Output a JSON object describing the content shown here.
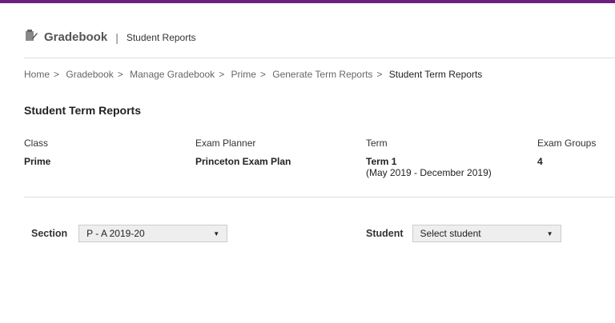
{
  "colors": {
    "topbar": "#6d1f7e"
  },
  "header": {
    "icon": "gradebook-icon",
    "title": "Gradebook",
    "separator": "|",
    "subtitle": "Student Reports"
  },
  "breadcrumb": {
    "items": [
      "Home",
      "Gradebook",
      "Manage Gradebook",
      "Prime",
      "Generate Term Reports"
    ],
    "current": "Student Term Reports",
    "separator": ">"
  },
  "page_title": "Student Term Reports",
  "details": [
    {
      "label": "Class",
      "value": "Prime"
    },
    {
      "label": "Exam Planner",
      "value": "Princeton Exam Plan"
    },
    {
      "label": "Term",
      "value": "Term 1",
      "note": "(May 2019 - December 2019)"
    },
    {
      "label": "Exam Groups",
      "value": "4"
    }
  ],
  "filters": {
    "section": {
      "label": "Section",
      "value": "P - A 2019-20"
    },
    "student": {
      "label": "Student",
      "value": "Select student"
    }
  }
}
